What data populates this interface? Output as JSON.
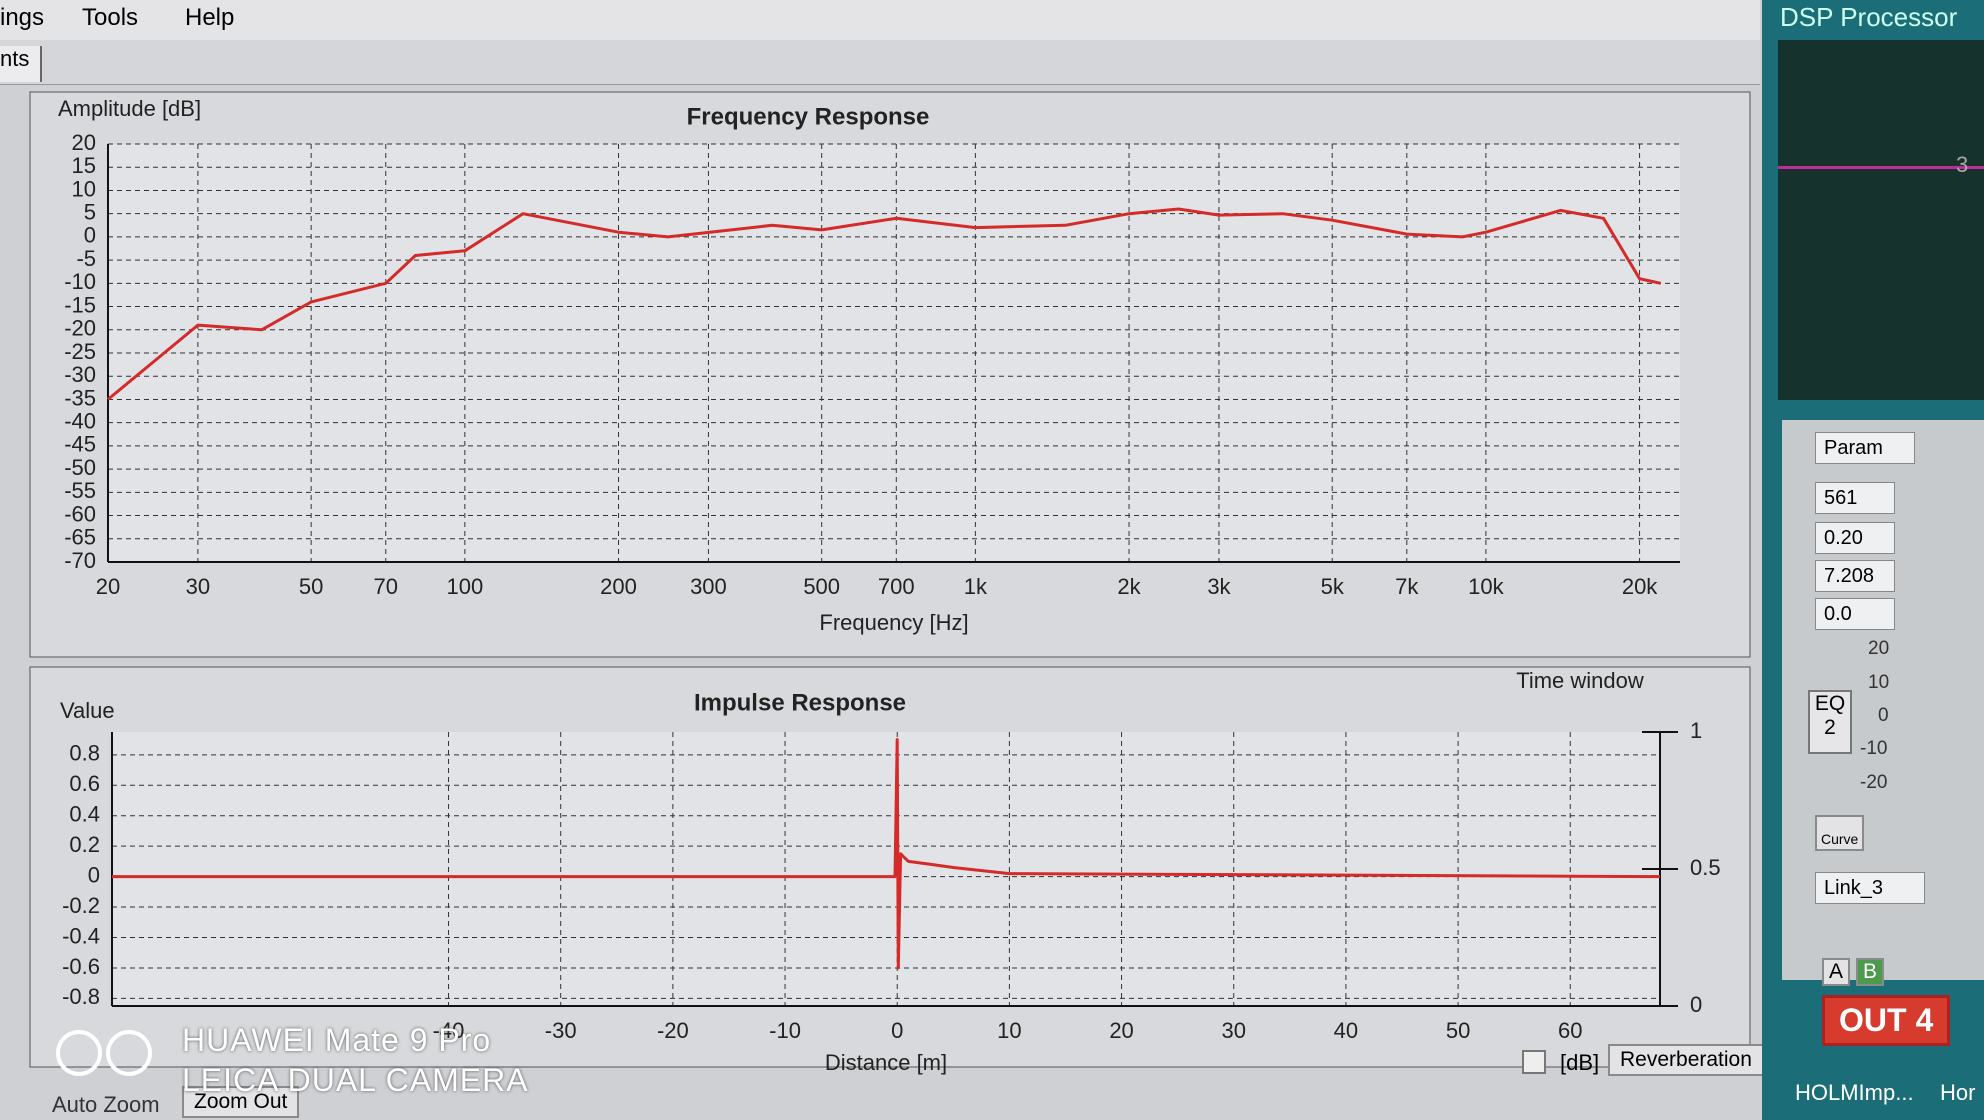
{
  "menu": [
    "ings",
    "Tools",
    "Help"
  ],
  "tab": "nts",
  "chart_data": [
    {
      "type": "line",
      "title": "Frequency Response",
      "y_label": "Amplitude [dB]",
      "x_label": "Frequency [Hz]",
      "x_scale": "log",
      "xlim": [
        20,
        24000
      ],
      "ylim": [
        -70,
        20
      ],
      "grid": true,
      "xticks": [
        20,
        30,
        50,
        70,
        100,
        200,
        300,
        500,
        700,
        {
          "value": 1000,
          "label": "1k"
        },
        {
          "value": 2000,
          "label": "2k"
        },
        {
          "value": 3000,
          "label": "3k"
        },
        {
          "value": 5000,
          "label": "5k"
        },
        {
          "value": 7000,
          "label": "7k"
        },
        {
          "value": 10000,
          "label": "10k"
        },
        {
          "value": 20000,
          "label": "20k"
        }
      ],
      "yticks": [
        20,
        15,
        10,
        5,
        0,
        -5,
        -10,
        -15,
        -20,
        -25,
        -30,
        -35,
        -40,
        -45,
        -50,
        -55,
        -60,
        -65,
        -70
      ],
      "series": [
        {
          "color": "#d42a2a",
          "x": [
            20,
            30,
            40,
            50,
            70,
            80,
            100,
            130,
            200,
            250,
            400,
            500,
            700,
            1000,
            1500,
            2000,
            2500,
            3000,
            4000,
            5000,
            7000,
            9000,
            10000,
            14000,
            17000,
            20000,
            22000
          ],
          "values": [
            -35,
            -19,
            -20,
            -14,
            -10,
            -4,
            -3,
            5,
            1,
            0,
            2.5,
            1.5,
            4,
            2,
            2.5,
            5,
            6,
            4.7,
            5,
            3.6,
            0.6,
            0,
            1,
            5.7,
            4,
            -9,
            -10
          ]
        }
      ]
    },
    {
      "type": "line",
      "title": "Impulse Response",
      "y_label": "Value",
      "x_label": "Distance [m]",
      "y2_label": "Time window",
      "xlim": [
        -70,
        68
      ],
      "ylim": [
        -0.85,
        0.95
      ],
      "y2lim": [
        0,
        1
      ],
      "grid": true,
      "xticks": [
        -40,
        -30,
        -20,
        -10,
        0,
        10,
        20,
        30,
        40,
        50,
        60
      ],
      "yticks": [
        0.8,
        0.6,
        0.4,
        0.2,
        0,
        -0.2,
        -0.4,
        -0.6,
        -0.8
      ],
      "y2ticks": [
        0,
        0.5,
        1
      ],
      "series": [
        {
          "color": "#d42a2a",
          "x": [
            -70,
            -0.2,
            0,
            0.1,
            0.3,
            1,
            3,
            5,
            10,
            68
          ],
          "values": [
            0,
            0,
            0.9,
            -0.6,
            0.15,
            0.1,
            0.08,
            0.06,
            0.02,
            0
          ]
        }
      ]
    }
  ],
  "panel": {
    "title": "DSP Processor",
    "display_value": "3",
    "mode": "Param",
    "fields": [
      "561",
      "0.20",
      "7.208",
      "0.0"
    ],
    "gain_scale": [
      20,
      10,
      0,
      -10,
      -20
    ],
    "eq": "EQ",
    "eq_number": "2",
    "curve": "Curve",
    "link": "Link_3",
    "a": "A",
    "b": "B",
    "output": "OUT 4",
    "file": "HOLMImp...",
    "other": "Hor"
  },
  "footer": {
    "auto_zoom": "Auto Zoom",
    "zoom_out": "Zoom Out",
    "db": "[dB]",
    "reverberation": "Reverberation"
  },
  "watermark": [
    "HUAWEI Mate 9 Pro",
    "LEICA DUAL CAMERA"
  ]
}
